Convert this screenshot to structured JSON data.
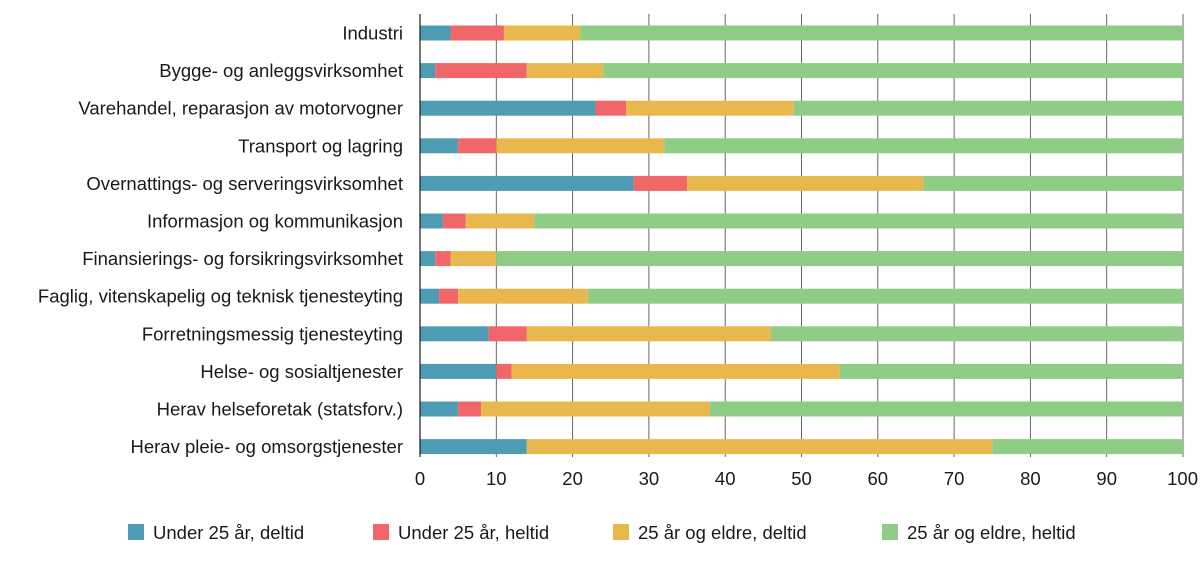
{
  "chart_data": {
    "type": "bar",
    "orientation": "horizontal",
    "stacked": true,
    "title": "",
    "xlabel": "",
    "ylabel": "",
    "xlim": [
      0,
      100
    ],
    "xticks": [
      0,
      10,
      20,
      30,
      40,
      50,
      60,
      70,
      80,
      90,
      100
    ],
    "grid": true,
    "legend_position": "bottom",
    "categories": [
      "Industri",
      "Bygge- og anleggsvirksomhet",
      "Varehandel, reparasjon av motorvogner",
      "Transport og lagring",
      "Overnattings- og serveringsvirksomhet",
      "Informasjon og kommunikasjon",
      "Finansierings- og forsikringsvirksomhet",
      "Faglig, vitenskapelig og teknisk tjenesteyting",
      "Forretningsmessig tjenesteyting",
      "Helse- og sosialtjenester",
      "Herav helseforetak (statsforv.)",
      "Herav pleie- og omsorgstjenester"
    ],
    "series": [
      {
        "name": "Under 25 år, deltid",
        "color": "#4e9cb3",
        "values": [
          4,
          2,
          23,
          5,
          28,
          3,
          2,
          2.5,
          9,
          10,
          5,
          14
        ]
      },
      {
        "name": "Under 25 år, heltid",
        "color": "#f06669",
        "values": [
          7,
          12,
          4,
          5,
          7,
          3,
          2,
          2.5,
          5,
          2,
          3,
          0
        ]
      },
      {
        "name": "25 år og eldre, deltid",
        "color": "#e8b84f",
        "values": [
          10,
          10,
          22,
          22,
          31,
          9,
          6,
          17,
          32,
          43,
          30,
          61
        ]
      },
      {
        "name": "25 år og eldre, heltid",
        "color": "#8fcc86",
        "values": [
          79,
          76,
          51,
          68,
          34,
          85,
          90,
          78,
          54,
          45,
          62,
          25
        ]
      }
    ]
  }
}
